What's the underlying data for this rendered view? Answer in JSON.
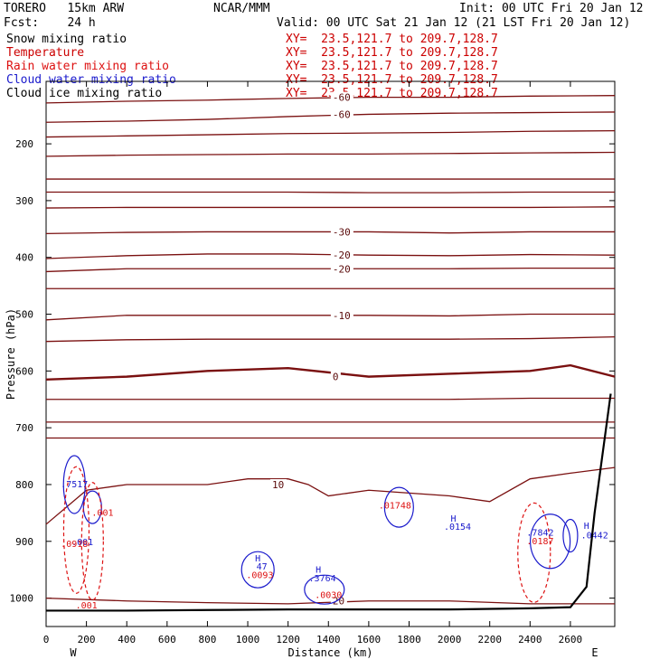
{
  "header": {
    "model": "TORERO   15km ARW",
    "org": "NCAR/MMM",
    "init": "Init: 00 UTC Fri 20 Jan 12",
    "fcst": "Fcst:    24 h",
    "valid": "Valid: 00 UTC Sat 21 Jan 12 (21 LST Fri 20 Jan 12)"
  },
  "legend": [
    {
      "label": "Snow mixing ratio",
      "xy": "XY=  23.5,121.7 to 209.7,128.7",
      "color": "#000000"
    },
    {
      "label": "Temperature",
      "xy": "XY=  23.5,121.7 to 209.7,128.7",
      "color": "#cc0000"
    },
    {
      "label": "Rain water mixing ratio",
      "xy": "XY=  23.5,121.7 to 209.7,128.7",
      "color": "#dd1111"
    },
    {
      "label": "Cloud water mixing ratio",
      "xy": "XY=  23.5,121.7 to 209.7,128.7",
      "color": "#1a1acc"
    },
    {
      "label": "Cloud ice mixing ratio",
      "xy": "XY=  23.5,121.7 to 209.7,128.7",
      "color": "#000000"
    }
  ],
  "chart_data": {
    "type": "cross-section contour",
    "xlabel": "Distance (km)",
    "ylabel": "Pressure (hPa)",
    "x_ticks": [
      0,
      200,
      400,
      600,
      800,
      1000,
      1200,
      1400,
      1600,
      1800,
      2000,
      2200,
      2400,
      2600
    ],
    "y_ticks": [
      200,
      300,
      400,
      500,
      600,
      700,
      800,
      900,
      1000
    ],
    "xlim": [
      0,
      2820
    ],
    "ylim": [
      1050,
      90
    ],
    "x_end_labels": {
      "left": "W",
      "right": "E"
    },
    "temperature_isotherms": [
      {
        "label": "-60",
        "x": [
          0,
          400,
          800,
          1200,
          1600,
          2000,
          2400,
          2820
        ],
        "p": [
          128,
          125,
          123,
          120,
          118,
          118,
          116,
          115
        ]
      },
      {
        "label": "-60",
        "x": [
          0,
          400,
          800,
          1200,
          1600,
          2000,
          2400,
          2820
        ],
        "p": [
          162,
          160,
          157,
          152,
          148,
          146,
          145,
          144
        ]
      },
      {
        "label": "",
        "x": [
          0,
          400,
          800,
          1200,
          1600,
          2000,
          2400,
          2820
        ],
        "p": [
          188,
          186,
          184,
          182,
          181,
          180,
          178,
          177
        ]
      },
      {
        "label": "",
        "x": [
          0,
          400,
          800,
          1200,
          1600,
          2000,
          2400,
          2820
        ],
        "p": [
          222,
          220,
          219,
          218,
          218,
          217,
          216,
          215
        ]
      },
      {
        "label": "",
        "x": [
          0,
          400,
          800,
          1200,
          1600,
          2000,
          2400,
          2820
        ],
        "p": [
          262,
          262,
          262,
          262,
          262,
          262,
          262,
          262
        ]
      },
      {
        "label": "",
        "x": [
          0,
          400,
          800,
          1200,
          1600,
          2000,
          2400,
          2820
        ],
        "p": [
          285,
          285,
          285,
          285,
          286,
          286,
          285,
          285
        ]
      },
      {
        "label": "",
        "x": [
          0,
          400,
          800,
          1200,
          1600,
          2000,
          2400,
          2820
        ],
        "p": [
          313,
          312,
          312,
          312,
          312,
          312,
          312,
          311
        ]
      },
      {
        "label": "-30",
        "x": [
          0,
          400,
          800,
          1200,
          1600,
          2000,
          2400,
          2820
        ],
        "p": [
          358,
          356,
          355,
          355,
          355,
          357,
          355,
          355
        ]
      },
      {
        "label": "-20",
        "x": [
          0,
          400,
          800,
          1200,
          1600,
          2000,
          2400,
          2820
        ],
        "p": [
          402,
          397,
          394,
          394,
          396,
          397,
          395,
          396
        ]
      },
      {
        "label": "-20",
        "x": [
          0,
          400,
          800,
          1200,
          1600,
          2000,
          2400,
          2820
        ],
        "p": [
          425,
          420,
          420,
          420,
          420,
          420,
          419,
          419
        ]
      },
      {
        "label": "",
        "x": [
          0,
          400,
          800,
          1200,
          1600,
          2000,
          2400,
          2820
        ],
        "p": [
          455,
          455,
          455,
          455,
          455,
          455,
          455,
          455
        ]
      },
      {
        "label": "-10",
        "x": [
          0,
          400,
          800,
          1200,
          1600,
          2000,
          2400,
          2820
        ],
        "p": [
          510,
          502,
          502,
          502,
          502,
          503,
          500,
          500
        ]
      },
      {
        "label": "",
        "x": [
          0,
          400,
          800,
          1200,
          1600,
          2000,
          2400,
          2820
        ],
        "p": [
          548,
          545,
          544,
          544,
          544,
          544,
          543,
          540
        ]
      },
      {
        "label": "0",
        "x": [
          0,
          400,
          800,
          1200,
          1600,
          2000,
          2400,
          2600,
          2820
        ],
        "p": [
          615,
          610,
          600,
          595,
          610,
          605,
          600,
          590,
          610
        ]
      },
      {
        "label": "",
        "x": [
          0,
          400,
          800,
          1200,
          1600,
          2000,
          2400,
          2820
        ],
        "p": [
          650,
          650,
          650,
          650,
          650,
          650,
          648,
          648
        ]
      },
      {
        "label": "",
        "x": [
          0,
          400,
          800,
          1200,
          1600,
          2000,
          2400,
          2820
        ],
        "p": [
          690,
          690,
          690,
          690,
          690,
          690,
          690,
          690
        ]
      },
      {
        "label": "",
        "x": [
          0,
          400,
          800,
          1200,
          1600,
          2000,
          2400,
          2820
        ],
        "p": [
          718,
          718,
          718,
          718,
          718,
          718,
          718,
          718
        ]
      },
      {
        "label": "10",
        "x": [
          0,
          200,
          400,
          600,
          800,
          1000,
          1200,
          1300,
          1400,
          1600,
          2000,
          2200,
          2400,
          2600,
          2820
        ],
        "p": [
          870,
          810,
          800,
          800,
          800,
          790,
          790,
          800,
          820,
          810,
          820,
          830,
          790,
          780,
          770
        ]
      },
      {
        "label": "20",
        "x": [
          0,
          400,
          800,
          1200,
          1600,
          2000,
          2400,
          2820
        ],
        "p": [
          1000,
          1005,
          1008,
          1010,
          1005,
          1005,
          1010,
          1010
        ]
      }
    ],
    "mixing_ratio_labels": [
      {
        "text": ".7517",
        "x": 140,
        "p": 805,
        "series": "cloud water"
      },
      {
        "text": ".001",
        "x": 180,
        "p": 907,
        "series": "cloud water"
      },
      {
        "text": ".001",
        "x": 280,
        "p": 855,
        "series": "rain water"
      },
      {
        "text": ".0918",
        "x": 140,
        "p": 910,
        "series": "rain water"
      },
      {
        "text": ".001",
        "x": 200,
        "p": 1018,
        "series": "rain water"
      },
      {
        "text": "H",
        "x": 1050,
        "p": 935,
        "series": "cloud water"
      },
      {
        "text": "47",
        "x": 1070,
        "p": 950,
        "series": "cloud water"
      },
      {
        "text": ".0093",
        "x": 1060,
        "p": 965,
        "series": "rain water"
      },
      {
        "text": "H",
        "x": 1350,
        "p": 955,
        "series": "cloud water"
      },
      {
        "text": ".3764",
        "x": 1370,
        "p": 970,
        "series": "cloud water"
      },
      {
        "text": ".0030",
        "x": 1400,
        "p": 1000,
        "series": "rain water"
      },
      {
        "text": ".01748",
        "x": 1730,
        "p": 842,
        "series": "rain water"
      },
      {
        "text": "H",
        "x": 2020,
        "p": 865,
        "series": "cloud water"
      },
      {
        "text": ".0154",
        "x": 2040,
        "p": 880,
        "series": "cloud water"
      },
      {
        "text": ".7842",
        "x": 2450,
        "p": 890,
        "series": "cloud water"
      },
      {
        "text": ".0187",
        "x": 2450,
        "p": 905,
        "series": "rain water"
      },
      {
        "text": "H",
        "x": 2680,
        "p": 878,
        "series": "cloud water"
      },
      {
        "text": ".0442",
        "x": 2720,
        "p": 895,
        "series": "cloud water"
      }
    ],
    "terrain": {
      "x": [
        0,
        400,
        800,
        1200,
        1600,
        2000,
        2400,
        2600,
        2680,
        2720,
        2800
      ],
      "p": [
        1022,
        1022,
        1021,
        1020,
        1020,
        1020,
        1018,
        1016,
        980,
        850,
        640
      ]
    }
  }
}
